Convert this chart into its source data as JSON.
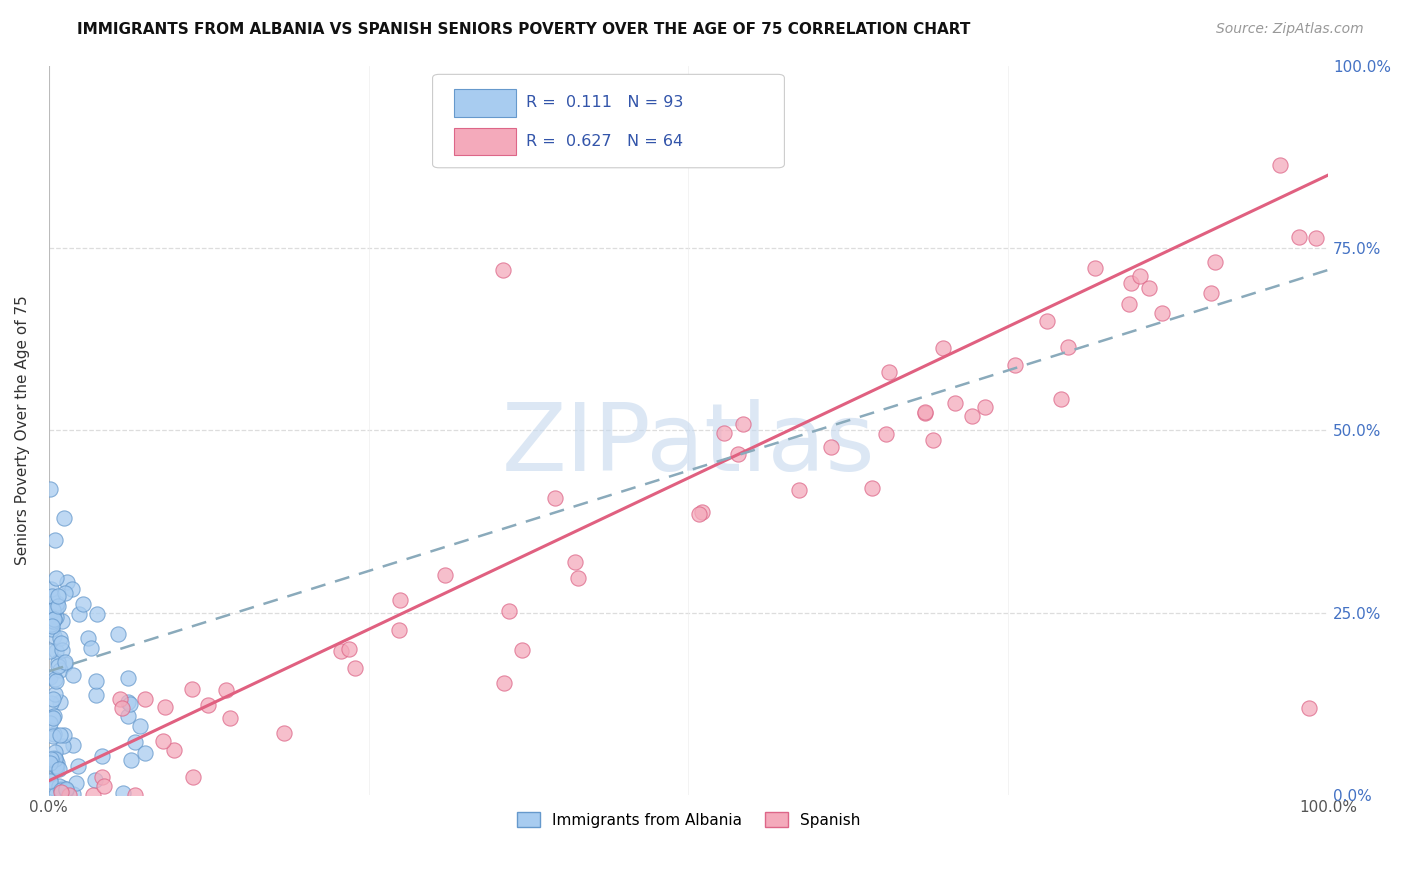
{
  "title": "IMMIGRANTS FROM ALBANIA VS SPANISH SENIORS POVERTY OVER THE AGE OF 75 CORRELATION CHART",
  "source": "Source: ZipAtlas.com",
  "ylabel": "Seniors Poverty Over the Age of 75",
  "watermark": "ZIPatlas",
  "legend_albania": "Immigrants from Albania",
  "legend_spanish": "Spanish",
  "R_albania": 0.111,
  "N_albania": 93,
  "R_spanish": 0.627,
  "N_spanish": 64,
  "albania_color": "#A8CCF0",
  "spanish_color": "#F4AABB",
  "albania_edge": "#6699CC",
  "spanish_edge": "#DD6688",
  "trend_albania_color": "#8AAABB",
  "trend_spanish_color": "#E06080",
  "yticks": [
    0.0,
    0.25,
    0.5,
    0.75,
    1.0
  ],
  "ytick_labels": [
    "0.0%",
    "25.0%",
    "50.0%",
    "75.0%",
    "100.0%"
  ],
  "xtick_labels": [
    "0.0%",
    "100.0%"
  ],
  "background_color": "#FFFFFF",
  "grid_color": "#DDDDDD",
  "title_fontsize": 11,
  "source_fontsize": 10,
  "watermark_color": "#C5D8EE",
  "watermark_alpha": 0.6
}
